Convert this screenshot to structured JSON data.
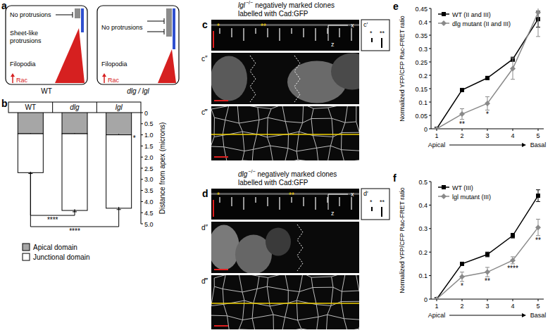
{
  "chart_data": [
    {
      "type": "bar",
      "panel_label": "b",
      "stacked": true,
      "categories": [
        "WT",
        "dlg",
        "lgl"
      ],
      "series": [
        {
          "name": "Apical domain",
          "color": "#a6a6a6",
          "values": [
            0.95,
            0.95,
            1.0
          ],
          "errors": [
            0.03,
            0.03,
            0.04
          ],
          "significance": [
            null,
            null,
            "*"
          ]
        },
        {
          "name": "Junctional domain",
          "color": "#ffffff",
          "values": [
            1.75,
            3.45,
            3.3
          ],
          "errors": [
            0.04,
            0.06,
            0.06
          ]
        }
      ],
      "y_label": "Distance from apex (microns)",
      "ylim": [
        5,
        0
      ],
      "yticks": [
        0,
        0.5,
        {
          "value": 1,
          "label": "1.0"
        },
        1.5,
        {
          "value": 2,
          "label": "2.0"
        },
        2.5,
        {
          "value": 3,
          "label": "3.0"
        },
        3.5,
        {
          "value": 4,
          "label": "4.0"
        },
        4.5,
        {
          "value": 5,
          "label": "5.0"
        }
      ],
      "comparisons": [
        {
          "between": [
            "WT",
            "dlg"
          ],
          "label": "****"
        },
        {
          "between": [
            "WT",
            "lgl"
          ],
          "label": "****"
        }
      ],
      "legend": "bottom"
    },
    {
      "type": "line",
      "panel_label": "e",
      "categories": [
        "1",
        "2",
        "3",
        "4",
        "5"
      ],
      "x_label": {
        "start": "Apical",
        "end": "Basal"
      },
      "y_label": "Normalized YFP/CFP Rac-FRET ratio",
      "ylim": [
        0,
        0.45
      ],
      "yticks": [
        0,
        0.05,
        0.1,
        0.15,
        0.2,
        0.25,
        0.3,
        0.35,
        0.4,
        0.45
      ],
      "series": [
        {
          "name": "WT (II and III)",
          "color": "#000000",
          "marker": "square",
          "values": [
            0,
            0.145,
            0.19,
            0.26,
            0.41
          ],
          "errors": [
            0,
            0.005,
            0.006,
            0.008,
            0.03
          ]
        },
        {
          "name": "dlg mutant (II and III)",
          "color": "#8a8a8a",
          "marker": "diamond",
          "values": [
            0,
            0.055,
            0.095,
            0.225,
            0.435
          ],
          "errors": [
            0,
            0.02,
            0.025,
            0.04,
            0.09
          ]
        }
      ],
      "significance": [
        null,
        "**",
        "*",
        null,
        null
      ],
      "legend": "upper left"
    },
    {
      "type": "line",
      "panel_label": "f",
      "categories": [
        "1",
        "2",
        "3",
        "4",
        "5"
      ],
      "x_label": {
        "start": "Apical",
        "end": "Basal"
      },
      "y_label": "Normalized YFP/CFP Rac-FRET ratio",
      "ylim": [
        0,
        0.5
      ],
      "yticks": [
        0,
        0.1,
        0.2,
        0.3,
        0.4,
        0.5
      ],
      "series": [
        {
          "name": "WT (III)",
          "color": "#000000",
          "marker": "square",
          "values": [
            0,
            0.15,
            0.19,
            0.27,
            0.44
          ],
          "errors": [
            0,
            0.006,
            0.01,
            0.01,
            0.025
          ]
        },
        {
          "name": "lgl mutant (III)",
          "color": "#8a8a8a",
          "marker": "diamond",
          "values": [
            0,
            0.095,
            0.115,
            0.165,
            0.305
          ],
          "errors": [
            0,
            0.02,
            0.02,
            0.015,
            0.035
          ]
        }
      ],
      "significance": [
        null,
        "*",
        "**",
        "****",
        "**"
      ],
      "legend": "upper left"
    }
  ],
  "figure": {
    "panel_a": {
      "label": "a",
      "cells": [
        {
          "title": "WT",
          "labels": [
            [
              "No protrusions"
            ],
            [
              "Sheet-like",
              "protrusions"
            ],
            [
              "Filopodia"
            ]
          ],
          "signal": "Rac"
        },
        {
          "title": "dlg / lgl",
          "labels": [
            [
              "No protrusions"
            ],
            [
              "Filopodia"
            ]
          ],
          "signal": "Rac"
        }
      ]
    },
    "images": [
      {
        "label": "c",
        "genotype": "lgl",
        "superscript": "−/−",
        "title_lines": [
          "negatively marked clones",
          "labelled with Cad:GFP"
        ],
        "sub_labels": [
          "c′",
          "c″",
          "c‴"
        ],
        "axes": [
          "x",
          "z"
        ],
        "image_marks": [
          "*",
          "**"
        ],
        "inset_marks": [
          "*",
          "**"
        ]
      },
      {
        "label": "d",
        "genotype": "dlg",
        "superscript": "−/−",
        "title_lines": [
          "negatively marked clones",
          "labelled with Cad:GFP"
        ],
        "sub_labels": [
          "d′",
          "d″",
          "d‴"
        ],
        "axes": [
          "x",
          "z"
        ],
        "image_marks": [
          "*",
          "**"
        ],
        "inset_marks": [
          "*",
          "**"
        ]
      }
    ]
  }
}
